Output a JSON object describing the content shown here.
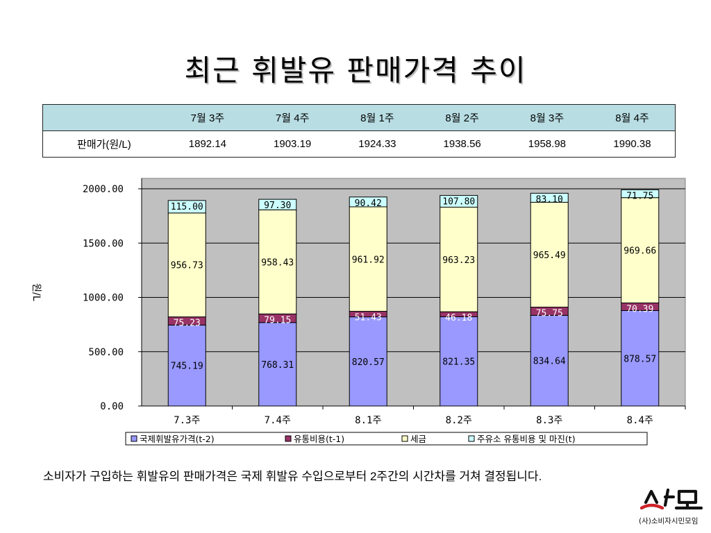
{
  "slide": {
    "title": "최근 휘발유 판매가격 추이",
    "note": "소비자가 구입하는 휘발유의 판매가격은 국제 휘발유 수입으로부터 2주간의 시간차를 거쳐 결정됩니다.",
    "logo_text": "(사)소비자시민모임"
  },
  "price_table": {
    "header_blank": "",
    "columns": [
      "7월 3주",
      "7월 4주",
      "8월 1주",
      "8월 2주",
      "8월 3주",
      "8월 4주"
    ],
    "row_label": "판매가(원/L)",
    "values": [
      "1892.14",
      "1903.19",
      "1924.33",
      "1938.56",
      "1958.98",
      "1990.38"
    ]
  },
  "chart_data": {
    "type": "bar",
    "stacked": true,
    "categories": [
      "7.3주",
      "7.4주",
      "8.1주",
      "8.2주",
      "8.3주",
      "8.4주"
    ],
    "ylabel": "원/L",
    "xlabel": "",
    "ylim": [
      0,
      2000
    ],
    "yticks": [
      "0.00",
      "500.00",
      "1000.00",
      "1500.00",
      "2000.00"
    ],
    "grid": true,
    "legend_position": "bottom",
    "series": [
      {
        "name": "국제휘발유가격(t-2)",
        "color": "#9999ff",
        "values": [
          745.19,
          768.31,
          820.57,
          821.35,
          834.64,
          878.57
        ],
        "labels": [
          "745.19",
          "768.31",
          "820.57",
          "821.35",
          "834.64",
          "878.57"
        ]
      },
      {
        "name": "유통비용(t-1)",
        "color": "#993366",
        "values": [
          75.23,
          79.15,
          51.43,
          46.18,
          75.75,
          70.39
        ],
        "labels": [
          "75.23",
          "79.15",
          "51.43",
          "46.18",
          "75.75",
          "70.39"
        ]
      },
      {
        "name": "세금",
        "color": "#ffffcc",
        "values": [
          956.73,
          958.43,
          961.92,
          963.23,
          965.49,
          969.66
        ],
        "labels": [
          "956.73",
          "958.43",
          "961.92",
          "963.23",
          "965.49",
          "969.66"
        ]
      },
      {
        "name": "주유소 유통비용 및 마진(t)",
        "color": "#ccffff",
        "values": [
          115.0,
          97.3,
          90.42,
          107.8,
          83.1,
          71.75
        ],
        "labels": [
          "115.00",
          "97.30",
          "90.42",
          "107.80",
          "83.10",
          "71.75"
        ]
      }
    ]
  }
}
